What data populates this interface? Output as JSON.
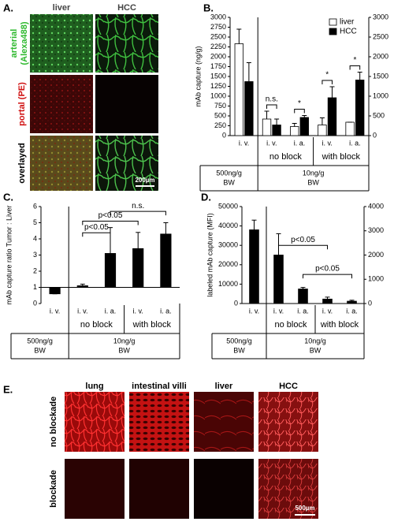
{
  "panel_a": {
    "label": "A.",
    "columns": [
      "liver",
      "HCC"
    ],
    "rows": [
      [
        "arterial",
        "(Alexa488)"
      ],
      [
        "portal (PE)"
      ],
      [
        "overlayed"
      ]
    ],
    "scale_bar": "200µm"
  },
  "chart_data": [
    {
      "panel_label": "B.",
      "type": "bar",
      "y_label": "mAb capture (ng/g)",
      "categories": [
        "i. v.",
        "i. v.",
        "i. a.",
        "i. v.",
        "i. a."
      ],
      "series": [
        {
          "name": "liver",
          "color": "#ffffff",
          "values": [
            2330,
            420,
            230,
            270,
            340
          ],
          "errors": [
            370,
            200,
            80,
            180,
            0
          ]
        },
        {
          "name": "HCC",
          "color": "#000000",
          "values": [
            1370,
            270,
            460,
            960,
            1410
          ],
          "errors": [
            480,
            150,
            50,
            280,
            200
          ]
        }
      ],
      "ylim": [
        0,
        3000
      ],
      "yticks": [
        0,
        250,
        500,
        750,
        1000,
        1250,
        1500,
        1750,
        2000,
        2250,
        2500,
        2750,
        3000
      ],
      "y2lim": [
        0,
        3000
      ],
      "y2ticks": [
        0,
        500,
        1000,
        1500,
        2000,
        2500,
        3000
      ],
      "group_labels": [
        "no block",
        "with block"
      ],
      "doses": [
        [
          "500ng/g",
          "BW"
        ],
        [
          "10ng/g",
          "BW"
        ]
      ],
      "annotations": [
        "n.s.",
        "*",
        "*",
        "*"
      ],
      "legend": "upper right"
    },
    {
      "panel_label": "C.",
      "type": "bar",
      "y_label": "mAb capture ratio Tumor : Liver",
      "categories": [
        "i. v.",
        "i. v.",
        "i. a.",
        "i. v.",
        "i. a."
      ],
      "values": [
        0.6,
        1.1,
        3.1,
        3.4,
        4.3
      ],
      "errors": [
        0,
        0.1,
        1.6,
        1.0,
        0.7
      ],
      "color": "#000000",
      "baseline": 1,
      "ylim": [
        0,
        6
      ],
      "yticks": [
        0,
        1,
        2,
        3,
        4,
        5,
        6
      ],
      "group_labels": [
        "no block",
        "with block"
      ],
      "doses": [
        [
          "500ng/g",
          "BW"
        ],
        [
          "10ng/g",
          "BW"
        ]
      ],
      "annotations": [
        "p<0.05",
        "p<0.05",
        "n.s."
      ]
    },
    {
      "panel_label": "D.",
      "type": "bar",
      "y_label": "labeled mAb capture (MFI)",
      "categories": [
        "i. v.",
        "i. v.",
        "i. a.",
        "i. v.",
        "i. a."
      ],
      "values": [
        38000,
        25000,
        7500,
        2300,
        1200
      ],
      "errors": [
        5000,
        11000,
        800,
        1000,
        500
      ],
      "color": "#000000",
      "ylim": [
        0,
        50000
      ],
      "yticks": [
        0,
        10000,
        20000,
        30000,
        40000,
        50000
      ],
      "y2lim": [
        0,
        4000
      ],
      "y2ticks": [
        0,
        1000,
        2000,
        3000,
        4000
      ],
      "group_labels": [
        "no block",
        "with block"
      ],
      "doses": [
        [
          "500ng/g",
          "BW"
        ],
        [
          "10ng/g",
          "BW"
        ]
      ],
      "annotations": [
        "p<0.05",
        "p<0.05"
      ]
    }
  ],
  "panel_e": {
    "label": "E.",
    "columns": [
      "lung",
      "intestinal villi",
      "liver",
      "HCC"
    ],
    "rows": [
      "no blockade",
      "blockade"
    ],
    "scale_bar": "500µm"
  }
}
